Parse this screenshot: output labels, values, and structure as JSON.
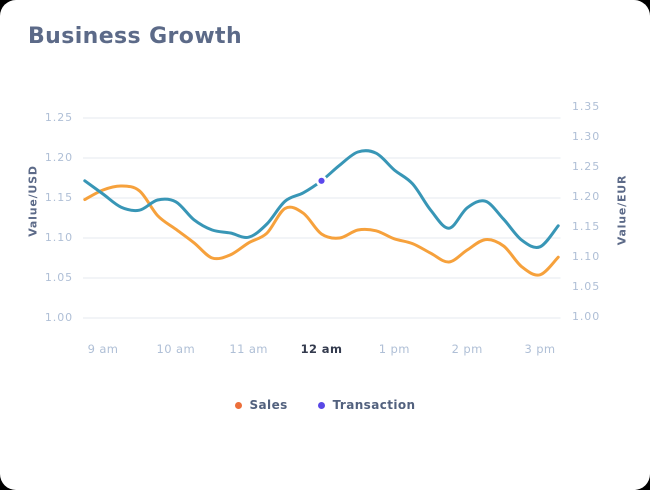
{
  "header": {
    "title": "Business Growth"
  },
  "colors": {
    "card_background": "#FFFFFF",
    "page_background": "#000000",
    "title_text": "#5C6A88",
    "axis_tick_text": "#AFBFD6",
    "highlighted_tick_text": "#343B4E",
    "grid_line": "#EAEEF2",
    "sales_line": "#F6A13C",
    "transaction_line": "#3896B6",
    "sales_legend_dot": "#EC6F3A",
    "transaction_legend_dot": "#5948E6",
    "highlight_point_fill": "#5B48EC",
    "highlight_point_ring": "#FFFFFF"
  },
  "chart_data": {
    "type": "line",
    "title": "Business Growth",
    "grid": "horizontal",
    "legend_position": "bottom",
    "x_axis": {
      "tick_labels": [
        "9 am",
        "10 am",
        "11 am",
        "12 am",
        "1 pm",
        "2 pm",
        "3 pm"
      ],
      "tick_hours": [
        9,
        10,
        11,
        12,
        13,
        14,
        15
      ],
      "highlighted_label": "12 am",
      "sample_hours": [
        8.75,
        9,
        9.25,
        9.5,
        9.75,
        10,
        10.25,
        10.5,
        10.75,
        11,
        11.25,
        11.5,
        11.75,
        12,
        12.25,
        12.5,
        12.75,
        13,
        13.25,
        13.5,
        13.75,
        14,
        14.25,
        14.5,
        14.75,
        15,
        15.25
      ]
    },
    "axes": {
      "left": {
        "title": "Value/USD",
        "tick_labels": [
          "1.25",
          "1.20",
          "1.15",
          "1.10",
          "1.05",
          "1.00"
        ],
        "max": 1.25,
        "min": 1.0,
        "tick_step": 0.05
      },
      "right": {
        "title": "Value/EUR",
        "tick_labels": [
          "1.35",
          "1.30",
          "1.25",
          "1.20",
          "1.15",
          "1.10",
          "1.05",
          "1.00"
        ],
        "max": 1.35,
        "min": 1.0,
        "tick_step": 0.05
      }
    },
    "series": [
      {
        "name": "Sales",
        "axis": "left",
        "line_color": "#F6A13C",
        "legend_dot_color": "#EC6F3A",
        "values": [
          1.148,
          1.16,
          1.165,
          1.159,
          1.128,
          1.111,
          1.094,
          1.075,
          1.079,
          1.094,
          1.106,
          1.137,
          1.131,
          1.105,
          1.1,
          1.11,
          1.109,
          1.099,
          1.093,
          1.081,
          1.07,
          1.085,
          1.098,
          1.09,
          1.064,
          1.054,
          1.076
        ]
      },
      {
        "name": "Transaction",
        "axis": "right",
        "line_color": "#3896B6",
        "legend_dot_color": "#5948E6",
        "values": [
          1.227,
          1.205,
          1.183,
          1.178,
          1.195,
          1.192,
          1.162,
          1.145,
          1.14,
          1.133,
          1.155,
          1.193,
          1.207,
          1.227,
          1.253,
          1.275,
          1.273,
          1.245,
          1.222,
          1.178,
          1.148,
          1.182,
          1.193,
          1.163,
          1.128,
          1.117,
          1.152
        ]
      }
    ],
    "highlight_point": {
      "series": "Transaction",
      "x_hour": 12,
      "value": 1.227
    }
  }
}
